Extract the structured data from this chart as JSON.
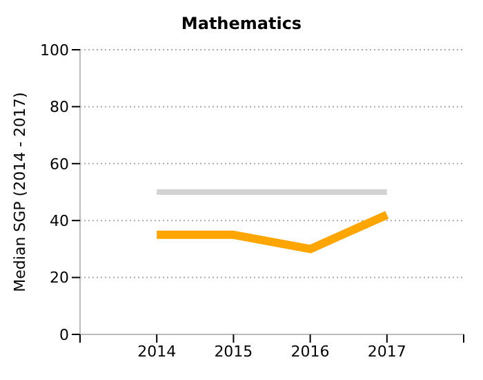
{
  "chart_data": {
    "type": "line",
    "title": "Mathematics",
    "ylabel": "Median SGP (2014 - 2017)",
    "x": [
      2014,
      2015,
      2016,
      2017
    ],
    "series": [
      {
        "color": "#d3d3d3",
        "values": [
          50,
          50,
          50,
          50
        ]
      },
      {
        "color": "#ffa500",
        "values": [
          35,
          35,
          30,
          42
        ]
      }
    ],
    "xlim": [
      2013,
      2018
    ],
    "xticks": [
      {
        "value": 2013,
        "label": null
      },
      2014,
      2015,
      2016,
      2017,
      {
        "value": 2018,
        "label": null
      }
    ],
    "ylim": [
      0,
      100
    ],
    "yticks": [
      0,
      20,
      40,
      60,
      80,
      100
    ],
    "grid": "y",
    "legend": false,
    "marker": "none",
    "line_style": "solid"
  }
}
